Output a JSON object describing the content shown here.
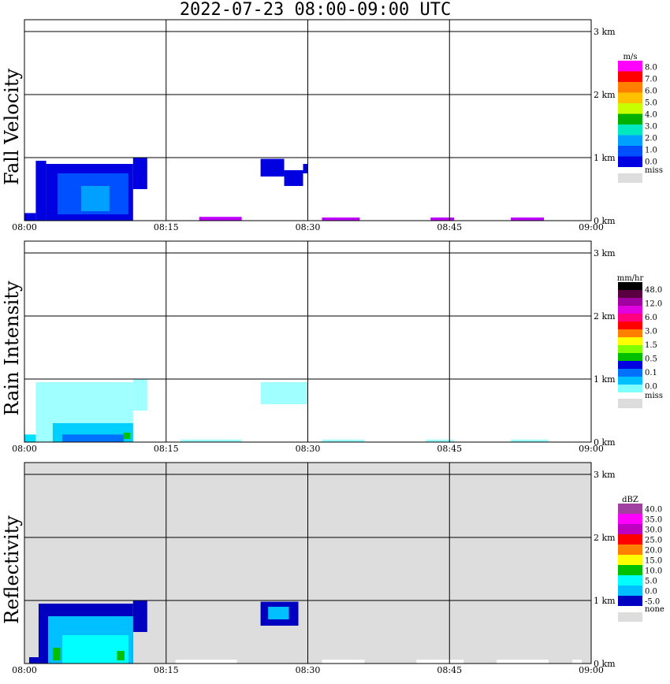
{
  "title": "2022-07-23   08:00-09:00 UTC",
  "colors": {
    "miss": "#dddddd",
    "grid": "#000000",
    "reflectivity_background": "#dddddd"
  },
  "chart_data": [
    {
      "type": "heatmap",
      "ylabel": "Fall Velocity",
      "x_ticks": [
        "08:00",
        "08:15",
        "08:30",
        "08:45",
        "09:00"
      ],
      "y_ticks": [
        "0 km",
        "1 km",
        "2 km",
        "3 km"
      ],
      "ylim_km": [
        0,
        3.15
      ],
      "xlim_min": [
        0,
        60
      ],
      "background": "white",
      "colorbar": {
        "unit": "m/s",
        "labels": [
          "8.0",
          "7.0",
          "6.0",
          "5.0",
          "4.0",
          "3.0",
          "2.0",
          "1.0",
          "0.0"
        ],
        "colors": [
          "#ff00ff",
          "#ff0000",
          "#ff7f00",
          "#ffc000",
          "#c8ff00",
          "#00b000",
          "#00e8c0",
          "#00a0ff",
          "#0050ff",
          "#0000e0"
        ],
        "miss_label": "miss"
      },
      "echo_regions": [
        {
          "t_start": 0.0,
          "t_end": 1.2,
          "h_bottom": 0.0,
          "h_top": 0.12,
          "color": "#0000e0"
        },
        {
          "t_start": 1.2,
          "t_end": 2.3,
          "h_bottom": 0.0,
          "h_top": 0.95,
          "color": "#0000e0"
        },
        {
          "t_start": 2.3,
          "t_end": 11.5,
          "h_bottom": 0.0,
          "h_top": 0.9,
          "color": "#0000e0"
        },
        {
          "t_start": 11.5,
          "t_end": 13.0,
          "h_bottom": 0.5,
          "h_top": 1.0,
          "color": "#0000e0"
        },
        {
          "t_start": 3.5,
          "t_end": 11.0,
          "h_bottom": 0.1,
          "h_top": 0.75,
          "color": "#0050ff"
        },
        {
          "t_start": 6.0,
          "t_end": 9.0,
          "h_bottom": 0.15,
          "h_top": 0.55,
          "color": "#00a0ff"
        },
        {
          "t_start": 25.0,
          "t_end": 27.5,
          "h_bottom": 0.7,
          "h_top": 0.98,
          "color": "#0000e0"
        },
        {
          "t_start": 27.5,
          "t_end": 29.5,
          "h_bottom": 0.55,
          "h_top": 0.8,
          "color": "#0000e0"
        },
        {
          "t_start": 29.5,
          "t_end": 30.0,
          "h_bottom": 0.75,
          "h_top": 0.9,
          "color": "#0000e0"
        },
        {
          "t_start": 18.5,
          "t_end": 23.0,
          "h_bottom": 0.0,
          "h_top": 0.06,
          "color": "#c000ff"
        },
        {
          "t_start": 31.5,
          "t_end": 35.5,
          "h_bottom": 0.0,
          "h_top": 0.05,
          "color": "#c000ff"
        },
        {
          "t_start": 43.0,
          "t_end": 45.5,
          "h_bottom": 0.0,
          "h_top": 0.05,
          "color": "#c000ff"
        },
        {
          "t_start": 51.5,
          "t_end": 55.0,
          "h_bottom": 0.0,
          "h_top": 0.05,
          "color": "#c000ff"
        }
      ]
    },
    {
      "type": "heatmap",
      "ylabel": "Rain Intensity",
      "x_ticks": [
        "08:00",
        "08:15",
        "08:30",
        "08:45",
        "09:00"
      ],
      "y_ticks": [
        "0 km",
        "1 km",
        "2 km",
        "3 km"
      ],
      "ylim_km": [
        0,
        3.15
      ],
      "xlim_min": [
        0,
        60
      ],
      "background": "white",
      "colorbar": {
        "unit": "mm/hr",
        "labels": [
          "48.0",
          "12.0",
          "6.0",
          "3.0",
          "1.5",
          "0.5",
          "0.1",
          "0.0"
        ],
        "colors": [
          "#000000",
          "#5a0040",
          "#a000a0",
          "#e000e0",
          "#ff0080",
          "#ff0000",
          "#ff8000",
          "#ffff00",
          "#80ff00",
          "#00c000",
          "#0000e0",
          "#0070ff",
          "#00c0ff",
          "#80ffff"
        ],
        "miss_label": "miss"
      },
      "echo_regions": [
        {
          "t_start": 0.0,
          "t_end": 1.2,
          "h_bottom": 0.0,
          "h_top": 0.12,
          "color": "#00e0ff"
        },
        {
          "t_start": 1.2,
          "t_end": 11.5,
          "h_bottom": 0.0,
          "h_top": 0.95,
          "color": "#a0ffff"
        },
        {
          "t_start": 11.5,
          "t_end": 13.0,
          "h_bottom": 0.5,
          "h_top": 1.0,
          "color": "#a0ffff"
        },
        {
          "t_start": 3.0,
          "t_end": 11.5,
          "h_bottom": 0.0,
          "h_top": 0.3,
          "color": "#00d0ff"
        },
        {
          "t_start": 4.0,
          "t_end": 10.5,
          "h_bottom": 0.0,
          "h_top": 0.12,
          "color": "#0070ff"
        },
        {
          "t_start": 10.5,
          "t_end": 11.2,
          "h_bottom": 0.05,
          "h_top": 0.15,
          "color": "#00c000"
        },
        {
          "t_start": 25.0,
          "t_end": 30.0,
          "h_bottom": 0.6,
          "h_top": 0.95,
          "color": "#a0ffff"
        },
        {
          "t_start": 16.5,
          "t_end": 23.0,
          "h_bottom": 0.0,
          "h_top": 0.04,
          "color": "#a0ffff"
        },
        {
          "t_start": 31.5,
          "t_end": 36.0,
          "h_bottom": 0.0,
          "h_top": 0.04,
          "color": "#a0ffff"
        },
        {
          "t_start": 42.5,
          "t_end": 45.5,
          "h_bottom": 0.0,
          "h_top": 0.04,
          "color": "#a0ffff"
        },
        {
          "t_start": 51.5,
          "t_end": 55.5,
          "h_bottom": 0.0,
          "h_top": 0.04,
          "color": "#a0ffff"
        }
      ]
    },
    {
      "type": "heatmap",
      "ylabel": "Reflectivity",
      "x_ticks": [
        "08:00",
        "08:15",
        "08:30",
        "08:45",
        "09:00"
      ],
      "y_ticks": [
        "0 km",
        "1 km",
        "2 km",
        "3 km"
      ],
      "ylim_km": [
        0,
        3.15
      ],
      "xlim_min": [
        0,
        60
      ],
      "background": "gray",
      "colorbar": {
        "unit": "dBZ",
        "labels": [
          "40.0",
          "35.0",
          "30.0",
          "25.0",
          "20.0",
          "15.0",
          "10.0",
          "5.0",
          "0.0",
          "-5.0"
        ],
        "colors": [
          "#a040a0",
          "#ff00ff",
          "#c000c0",
          "#ff0000",
          "#ff8000",
          "#ffff00",
          "#00c000",
          "#00ffff",
          "#00c0ff",
          "#0000c0"
        ],
        "miss_label": "none"
      },
      "echo_regions": [
        {
          "t_start": 0.5,
          "t_end": 1.5,
          "h_bottom": 0.0,
          "h_top": 0.1,
          "color": "#0000c0"
        },
        {
          "t_start": 1.5,
          "t_end": 11.5,
          "h_bottom": 0.0,
          "h_top": 0.95,
          "color": "#0000c0"
        },
        {
          "t_start": 11.5,
          "t_end": 13.0,
          "h_bottom": 0.5,
          "h_top": 1.0,
          "color": "#0000c0"
        },
        {
          "t_start": 2.5,
          "t_end": 11.5,
          "h_bottom": 0.0,
          "h_top": 0.75,
          "color": "#00c0ff"
        },
        {
          "t_start": 4.0,
          "t_end": 11.0,
          "h_bottom": 0.0,
          "h_top": 0.45,
          "color": "#00ffff"
        },
        {
          "t_start": 3.0,
          "t_end": 3.8,
          "h_bottom": 0.05,
          "h_top": 0.25,
          "color": "#00c000"
        },
        {
          "t_start": 9.8,
          "t_end": 10.6,
          "h_bottom": 0.05,
          "h_top": 0.2,
          "color": "#00c000"
        },
        {
          "t_start": 25.0,
          "t_end": 29.0,
          "h_bottom": 0.6,
          "h_top": 0.98,
          "color": "#0000c0"
        },
        {
          "t_start": 25.8,
          "t_end": 28.0,
          "h_bottom": 0.7,
          "h_top": 0.9,
          "color": "#00c0ff"
        },
        {
          "t_start": 16.0,
          "t_end": 22.5,
          "h_bottom": 0.0,
          "h_top": 0.06,
          "color": "#ffffff"
        },
        {
          "t_start": 31.5,
          "t_end": 36.0,
          "h_bottom": 0.0,
          "h_top": 0.06,
          "color": "#ffffff"
        },
        {
          "t_start": 41.5,
          "t_end": 46.5,
          "h_bottom": 0.0,
          "h_top": 0.06,
          "color": "#ffffff"
        },
        {
          "t_start": 50.0,
          "t_end": 55.5,
          "h_bottom": 0.0,
          "h_top": 0.06,
          "color": "#ffffff"
        },
        {
          "t_start": 58.0,
          "t_end": 59.0,
          "h_bottom": 0.0,
          "h_top": 0.06,
          "color": "#ffffff"
        }
      ]
    }
  ]
}
